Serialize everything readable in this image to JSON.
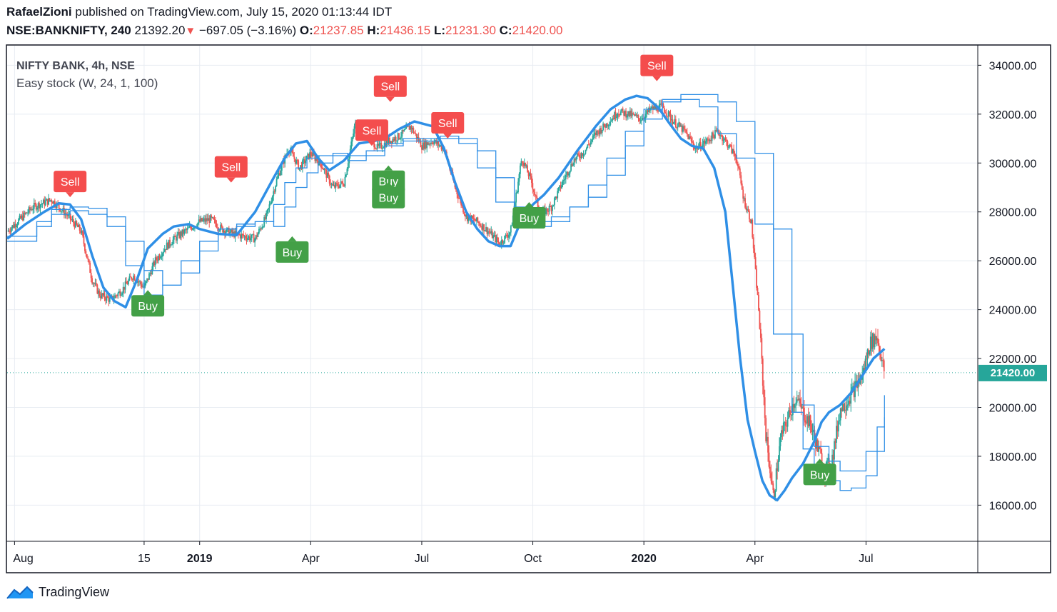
{
  "header": {
    "author": "RafaelZioni",
    "published_text": "published on TradingView.com, July 15, 2020 01:13:44 IDT",
    "symbol": "NSE:BANKNIFTY, 240",
    "last": "21392.20",
    "change": "−697.05 (−3.16%)",
    "o_label": "O:",
    "o_value": "21237.85",
    "h_label": "H:",
    "h_value": "21436.15",
    "l_label": "L:",
    "l_value": "21231.30",
    "c_label": "C:",
    "c_value": "21420.00"
  },
  "legend": {
    "instrument": "NIFTY BANK, 4h, NSE",
    "indicator": "Easy stock (W, 24, 1, 100)"
  },
  "price_tag": "21420.00",
  "brand": "TradingView",
  "colors": {
    "up": "#26a69a",
    "down": "#ef5350",
    "main_line": "#2f8fe6",
    "step_line": "#2f8fe6",
    "sell": "#f44d4d",
    "buy": "#43a047",
    "price_tag_bg": "#26a69a",
    "grid": "#e8ecf2"
  },
  "chart_data": {
    "type": "line",
    "title": "NIFTY BANK, 4h, NSE",
    "y_ticks": [
      "34000.00",
      "32000.00",
      "30000.00",
      "28000.00",
      "26000.00",
      "24000.00",
      "22000.00",
      "20000.00",
      "18000.00",
      "16000.00"
    ],
    "x_ticks": [
      {
        "label": "Aug",
        "bold": false,
        "t": 0.0
      },
      {
        "label": "15",
        "bold": false,
        "t": 3.5
      },
      {
        "label": "2019",
        "bold": true,
        "t": 5.0
      },
      {
        "label": "Apr",
        "bold": false,
        "t": 8.0
      },
      {
        "label": "Jul",
        "bold": false,
        "t": 11.0
      },
      {
        "label": "Oct",
        "bold": false,
        "t": 14.0
      },
      {
        "label": "2020",
        "bold": true,
        "t": 17.0
      },
      {
        "label": "Apr",
        "bold": false,
        "t": 20.0
      },
      {
        "label": "Jul",
        "bold": false,
        "t": 23.0
      }
    ],
    "xlim": [
      -0.2,
      26.0
    ],
    "ylim": [
      14550,
      34800
    ],
    "last_price": 21420,
    "series": [
      {
        "role": "smoothed",
        "x": [
          -0.2,
          0.3,
          0.8,
          1.2,
          1.5,
          1.8,
          2.1,
          2.4,
          2.7,
          3.0,
          3.3,
          3.6,
          4.0,
          4.3,
          4.7,
          5.0,
          5.5,
          6.0,
          6.5,
          7.0,
          7.3,
          7.6,
          7.9,
          8.2,
          8.5,
          8.9,
          9.3,
          9.7,
          10.0,
          10.4,
          10.8,
          11.3,
          11.6,
          11.9,
          12.2,
          12.5,
          12.8,
          13.1,
          13.4,
          13.7,
          14.0,
          14.3,
          14.7,
          15.2,
          15.7,
          16.1,
          16.5,
          16.8,
          17.1,
          17.4,
          17.7,
          18.0,
          18.3,
          18.6,
          18.9,
          19.2,
          19.4,
          19.6,
          19.8,
          20.0,
          20.2,
          20.4,
          20.6,
          20.8,
          21.0,
          21.3,
          21.6,
          21.8,
          22.0,
          22.3,
          22.6,
          22.9,
          23.2,
          23.5
        ],
        "values": [
          26900,
          27500,
          28000,
          28350,
          28300,
          27700,
          26200,
          24900,
          24350,
          24100,
          25200,
          26500,
          27100,
          27400,
          27500,
          27300,
          27100,
          27050,
          28000,
          29400,
          30200,
          30800,
          30900,
          30200,
          29700,
          30100,
          30800,
          30900,
          31000,
          31400,
          31700,
          31500,
          30600,
          29200,
          28000,
          27300,
          26800,
          26600,
          26600,
          27700,
          28300,
          28700,
          29400,
          30500,
          31500,
          32200,
          32600,
          32750,
          32650,
          32250,
          31600,
          31000,
          30700,
          30600,
          29800,
          28000,
          25000,
          22000,
          19500,
          18200,
          17000,
          16400,
          16200,
          16600,
          17100,
          17700,
          18600,
          19400,
          19800,
          20100,
          20600,
          21300,
          22000,
          22400
        ]
      },
      {
        "role": "step-fast",
        "x": [
          -0.2,
          0.6,
          1.0,
          1.5,
          2.0,
          2.5,
          3.0,
          3.5,
          4.0,
          4.5,
          5.0,
          5.5,
          6.0,
          6.5,
          7.0,
          7.3,
          7.6,
          7.9,
          8.2,
          8.6,
          9.0,
          9.5,
          10.0,
          10.5,
          11.0,
          11.5,
          12.0,
          12.5,
          13.0,
          13.5,
          14.0,
          14.5,
          15.0,
          15.5,
          16.0,
          16.5,
          17.0,
          17.5,
          18.0,
          18.5,
          19.0,
          19.5,
          20.0,
          20.5,
          21.0,
          21.3,
          21.6,
          22.0,
          22.3,
          22.6,
          23.0,
          23.3,
          23.5
        ],
        "values": [
          26800,
          27400,
          27900,
          28050,
          27900,
          27400,
          25800,
          24600,
          25000,
          26000,
          26800,
          27300,
          27500,
          27600,
          28300,
          29200,
          29800,
          30200,
          30300,
          30300,
          30100,
          30300,
          30700,
          30900,
          30900,
          31000,
          30800,
          29800,
          28400,
          27400,
          27400,
          27600,
          28200,
          29100,
          30200,
          31300,
          32200,
          32600,
          32600,
          32300,
          31200,
          30200,
          27500,
          23000,
          19800,
          18300,
          17300,
          17000,
          16600,
          16700,
          17200,
          18200,
          19600
        ]
      },
      {
        "role": "step-slow",
        "x": [
          -0.2,
          0.6,
          1.0,
          1.5,
          2.0,
          2.5,
          3.0,
          3.5,
          4.0,
          4.5,
          5.0,
          5.5,
          6.0,
          6.5,
          7.0,
          7.3,
          7.6,
          7.9,
          8.2,
          8.6,
          9.0,
          9.5,
          10.0,
          10.5,
          11.0,
          11.5,
          12.0,
          12.5,
          13.0,
          13.5,
          14.0,
          14.5,
          15.0,
          15.5,
          16.0,
          16.5,
          17.0,
          17.5,
          18.0,
          18.5,
          19.0,
          19.5,
          20.0,
          20.5,
          21.0,
          21.3,
          21.6,
          22.0,
          22.3,
          22.6,
          23.0,
          23.3,
          23.5
        ],
        "values": [
          27000,
          27600,
          28100,
          28200,
          28150,
          27800,
          26800,
          25600,
          25000,
          25500,
          26400,
          27100,
          27400,
          27600,
          27400,
          28200,
          29000,
          29600,
          30000,
          30400,
          30300,
          30500,
          30800,
          31000,
          31000,
          31100,
          31000,
          30500,
          29400,
          28200,
          27600,
          27800,
          28200,
          28600,
          29500,
          30700,
          31800,
          32500,
          32800,
          32800,
          32500,
          31700,
          30400,
          27300,
          23000,
          20100,
          18400,
          17800,
          17400,
          17400,
          18200,
          19200,
          20500
        ]
      }
    ],
    "signals": [
      {
        "label": "Sell",
        "kind": "sell",
        "t": 1.5,
        "price": 28600,
        "stack": 0
      },
      {
        "label": "Buy",
        "kind": "buy",
        "t": 3.6,
        "price": 24800,
        "stack": 0
      },
      {
        "label": "Sell",
        "kind": "sell",
        "t": 5.85,
        "price": 29200,
        "stack": 0
      },
      {
        "label": "Buy",
        "kind": "buy",
        "t": 7.5,
        "price": 27000,
        "stack": 0
      },
      {
        "label": "Sell",
        "kind": "sell",
        "t": 9.65,
        "price": 30700,
        "stack": 0
      },
      {
        "label": "Sell",
        "kind": "sell",
        "t": 10.15,
        "price": 32500,
        "stack": 0
      },
      {
        "label": "Buy",
        "kind": "buy",
        "t": 10.1,
        "price": 29900,
        "stack": 0
      },
      {
        "label": "Buy",
        "kind": "buy",
        "t": 10.1,
        "price": 29900,
        "stack": 1
      },
      {
        "label": "Sell",
        "kind": "sell",
        "t": 11.7,
        "price": 31000,
        "stack": 0
      },
      {
        "label": "Buy",
        "kind": "buy",
        "t": 13.9,
        "price": 28400,
        "stack": 0
      },
      {
        "label": "Sell",
        "kind": "sell",
        "t": 17.35,
        "price": 33350,
        "stack": 0
      },
      {
        "label": "Buy",
        "kind": "buy",
        "t": 21.75,
        "price": 17900,
        "stack": 0
      }
    ],
    "candle_path": {
      "t": [
        -0.2,
        0.5,
        1.0,
        1.4,
        1.8,
        2.1,
        2.3,
        2.6,
        2.9,
        3.2,
        3.5,
        3.8,
        4.1,
        4.4,
        4.7,
        5.0,
        5.3,
        5.6,
        5.9,
        6.2,
        6.5,
        6.8,
        7.1,
        7.4,
        7.7,
        8.0,
        8.3,
        8.6,
        8.9,
        9.2,
        9.5,
        9.8,
        10.1,
        10.4,
        10.7,
        11.0,
        11.3,
        11.6,
        11.9,
        12.2,
        12.5,
        12.8,
        13.1,
        13.4,
        13.7,
        13.95,
        14.2,
        14.5,
        14.8,
        15.1,
        15.4,
        15.7,
        16.0,
        16.3,
        16.6,
        16.9,
        17.2,
        17.5,
        17.8,
        18.1,
        18.4,
        18.7,
        19.0,
        19.3,
        19.5,
        19.7,
        19.9,
        20.1,
        20.3,
        20.5,
        20.7,
        20.9,
        21.1,
        21.3,
        21.5,
        21.7,
        21.9,
        22.1,
        22.3,
        22.5,
        22.7,
        22.9,
        23.1,
        23.3,
        23.5
      ],
      "p": [
        27200,
        28200,
        28500,
        27900,
        27200,
        25200,
        24600,
        24400,
        24800,
        25400,
        24900,
        26000,
        26600,
        27000,
        27300,
        27600,
        27700,
        27300,
        27100,
        27000,
        26900,
        27800,
        29400,
        30600,
        29800,
        30400,
        29900,
        29000,
        29200,
        31600,
        31300,
        30600,
        30900,
        31100,
        31500,
        30700,
        30900,
        30600,
        29000,
        27800,
        27600,
        27200,
        26700,
        27200,
        30200,
        29300,
        27900,
        28200,
        29200,
        30100,
        30500,
        31200,
        31600,
        32100,
        32000,
        31800,
        32200,
        32300,
        31700,
        31300,
        30600,
        30900,
        31300,
        30700,
        30200,
        28500,
        27600,
        24000,
        18800,
        16300,
        18800,
        19600,
        20400,
        19800,
        19300,
        18300,
        17400,
        18000,
        19900,
        20300,
        20800,
        21300,
        22600,
        22900,
        21400
      ]
    }
  }
}
